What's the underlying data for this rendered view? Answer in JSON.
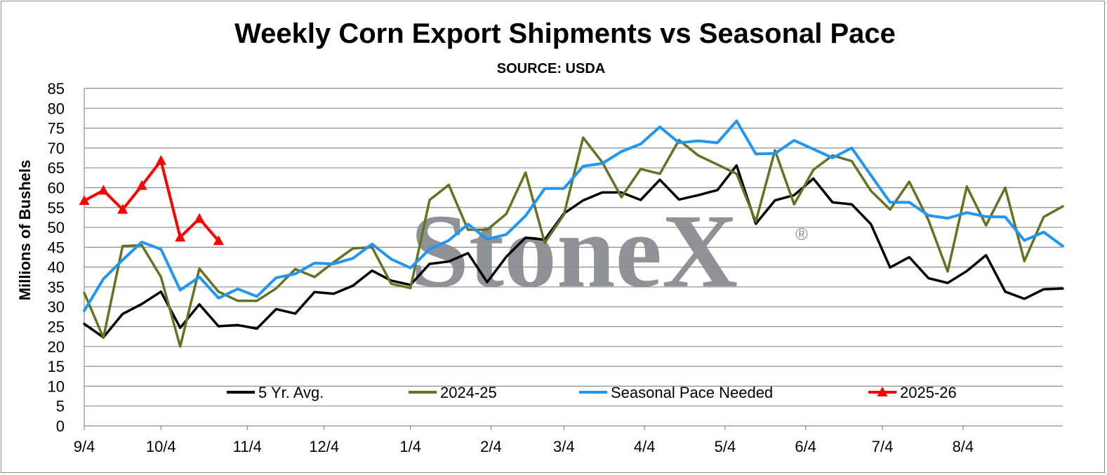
{
  "chart_data": {
    "type": "line",
    "title": "Weekly Corn Export Shipments vs Seasonal Pace",
    "subtitle": "SOURCE: USDA",
    "xlabel": "",
    "ylabel": "Millions of Bushels",
    "ylim": [
      0,
      85
    ],
    "yticks": [
      0,
      5,
      10,
      15,
      20,
      25,
      30,
      35,
      40,
      45,
      50,
      55,
      60,
      65,
      70,
      75,
      80,
      85
    ],
    "x_tick_labels": [
      "9/4",
      "10/4",
      "11/4",
      "12/4",
      "1/4",
      "2/4",
      "3/4",
      "4/4",
      "5/4",
      "6/4",
      "7/4",
      "8/4"
    ],
    "x_tick_positions": [
      0,
      4,
      8.5,
      12.5,
      17,
      21.2,
      25,
      29.2,
      33.4,
      37.6,
      41.6,
      45.8
    ],
    "grid": "horizontal",
    "legend_position": "bottom",
    "watermark": "StoneX®",
    "series": [
      {
        "name": "5 Yr. Avg.",
        "color": "#000000",
        "marker": "none",
        "values": [
          25.7,
          22.3,
          28.2,
          30.7,
          33.8,
          24.7,
          30.6,
          25.1,
          25.4,
          24.5,
          29.4,
          28.3,
          33.7,
          33.3,
          35.3,
          39.1,
          36.6,
          35.5,
          40.8,
          41.4,
          43.5,
          36.2,
          42.6,
          47.4,
          46.9,
          53.5,
          56.8,
          58.8,
          58.8,
          56.9,
          62.0,
          57.0,
          58.1,
          59.4,
          65.6,
          50.9,
          56.8,
          58.1,
          62.3,
          56.3,
          55.8,
          50.8,
          39.9,
          42.5,
          37.2,
          36.0,
          39.0,
          43.0,
          33.8,
          32.0,
          34.4,
          34.6
        ]
      },
      {
        "name": "2024-25",
        "color": "#627321",
        "marker": "none",
        "values": [
          33.5,
          22.2,
          45.3,
          45.5,
          37.5,
          20.0,
          39.6,
          33.8,
          31.5,
          31.5,
          34.6,
          39.5,
          37.5,
          41.2,
          44.7,
          45.0,
          35.8,
          34.7,
          56.9,
          60.7,
          49.4,
          49.4,
          53.4,
          63.8,
          46.1,
          53.2,
          72.6,
          66.4,
          57.6,
          64.7,
          63.5,
          72.0,
          68.1,
          65.8,
          63.5,
          51.5,
          69.4,
          55.8,
          64.5,
          68.1,
          66.7,
          59.2,
          54.5,
          61.5,
          51.8,
          38.9,
          60.3,
          50.5,
          60.0,
          41.5,
          52.6,
          55.3
        ]
      },
      {
        "name": "Seasonal Pace Needed",
        "color": "#2196f3",
        "marker": "none",
        "values": [
          29.0,
          37.0,
          41.8,
          46.3,
          44.5,
          34.2,
          37.5,
          32.2,
          34.5,
          32.6,
          37.3,
          38.3,
          41.0,
          40.8,
          42.2,
          45.8,
          42.0,
          39.8,
          44.5,
          46.7,
          50.8,
          47.0,
          48.2,
          52.9,
          59.8,
          59.8,
          65.4,
          66.1,
          69.1,
          71.0,
          75.3,
          71.3,
          71.8,
          71.3,
          76.8,
          68.5,
          68.6,
          71.9,
          69.7,
          67.5,
          70.0,
          63.1,
          56.3,
          56.3,
          53.0,
          52.3,
          53.7,
          52.7,
          52.6,
          46.7,
          48.8,
          45.3
        ]
      },
      {
        "name": "2025-26",
        "color": "#ff0000",
        "marker": "triangle",
        "values": [
          56.7,
          59.3,
          54.5,
          60.5,
          66.8,
          47.5,
          52.2,
          46.6
        ]
      }
    ]
  }
}
